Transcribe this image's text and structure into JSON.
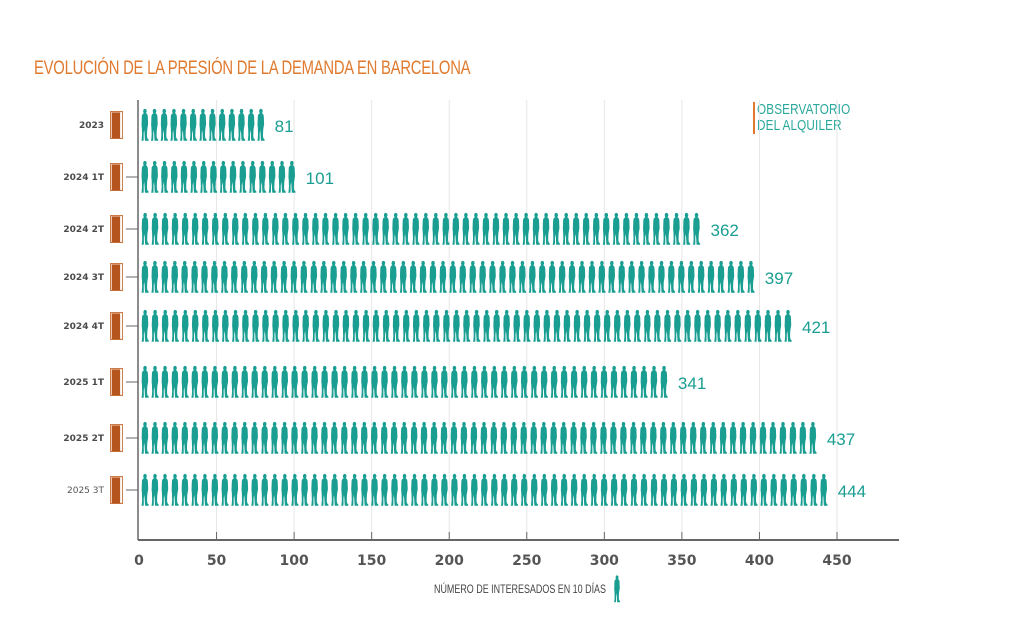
{
  "chart_data": {
    "type": "bar",
    "style": "pictogram",
    "title": "EVOLUCIÓN DE LA PRESIÓN DE LA DEMANDA EN BARCELONA",
    "brand": [
      "OBSERVATORIO",
      "DEL ALQUILER"
    ],
    "categories": [
      "2023",
      "2024 1T",
      "2024 2T",
      "2024 3T",
      "2024 4T",
      "2025 1T",
      "2025 2T",
      "2025 3T"
    ],
    "values": [
      81,
      101,
      362,
      397,
      421,
      341,
      437,
      444
    ],
    "value_labels": [
      "81",
      "101",
      "362",
      "397",
      "421",
      "341",
      "437",
      "444"
    ],
    "xlabel": "NÚMERO DE INTERESADOS EN 10 DÍAS",
    "ylabel": "",
    "xlim": [
      0,
      490
    ],
    "xticks": [
      0,
      50,
      100,
      150,
      200,
      250,
      300,
      350,
      400,
      450
    ],
    "xtick_labels": [
      "0",
      "50",
      "100",
      "150",
      "200",
      "250",
      "300",
      "350",
      "400",
      "450"
    ],
    "grid": true,
    "orientation": "horizontal",
    "colors": {
      "figure": "#1a9e92",
      "title": "#e07a2e",
      "door": "#b5541c",
      "axis": "#666666",
      "grid": "#e6e6e6"
    },
    "icons": {
      "bar_unit": "person-silhouette-icon",
      "category_marker": "open-door-icon"
    }
  }
}
